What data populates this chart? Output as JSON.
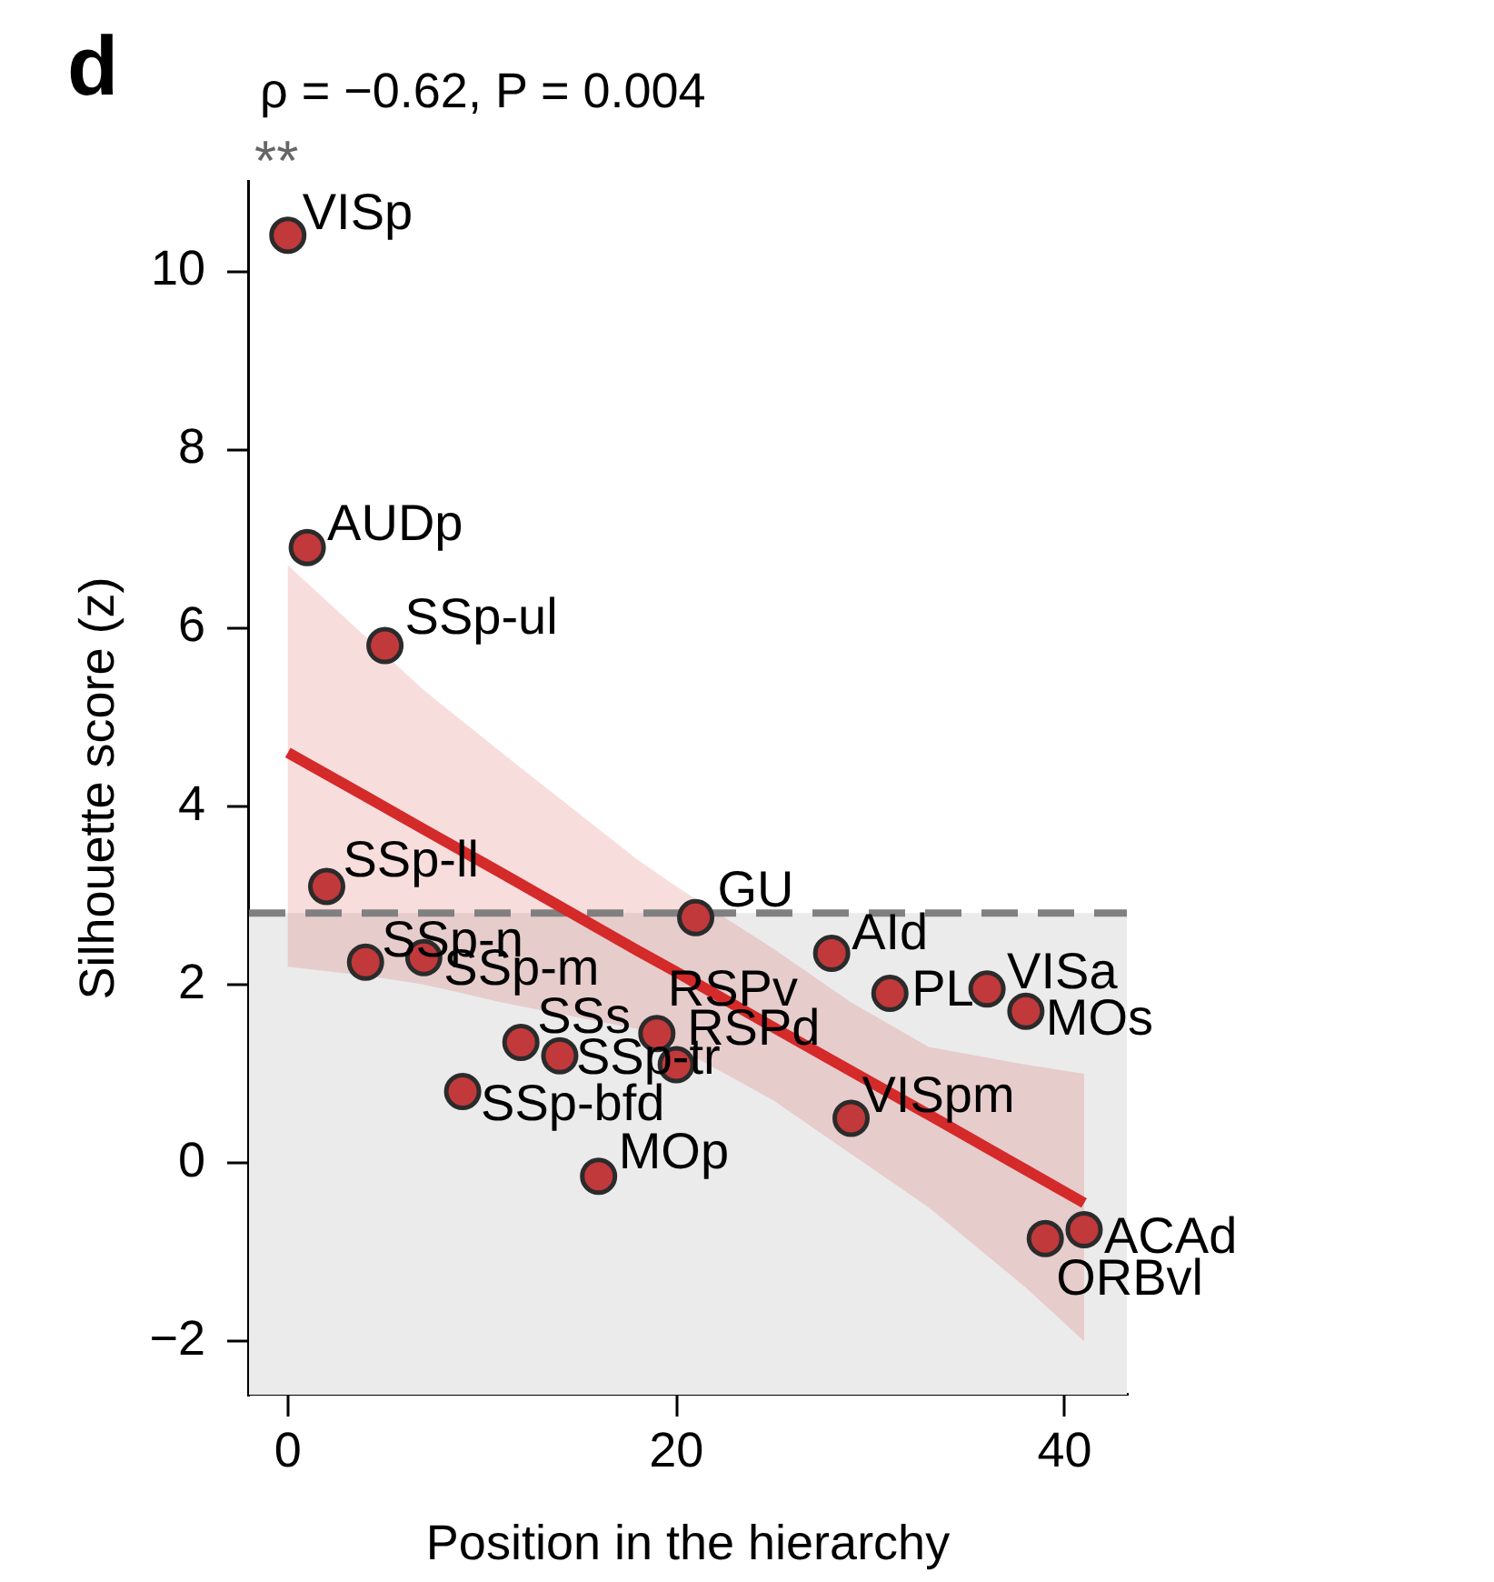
{
  "chart_data": {
    "type": "scatter",
    "title": "ρ = −0.62, P = 0.004",
    "subtitle": "**",
    "xlabel": "Position in the hierarchy",
    "ylabel": "Silhouette score (z)",
    "xlim": [
      -2,
      43.2
    ],
    "xticks": [
      0,
      20,
      40
    ],
    "ylim": [
      -2.6,
      11
    ],
    "yticks": [
      {
        "value": -2,
        "label": "−2"
      },
      0,
      2,
      4,
      6,
      8,
      10
    ],
    "grid": false,
    "legend": false,
    "marker": "circle",
    "series": [
      {
        "type": "scatter",
        "color": "#c1393b",
        "x": [
          0,
          1,
          2,
          4,
          5,
          7,
          9,
          12,
          14,
          16,
          19,
          20,
          21,
          28,
          29,
          31,
          36,
          38,
          39,
          41
        ],
        "values": [
          10.4,
          6.9,
          3.1,
          2.25,
          5.8,
          2.3,
          0.8,
          1.35,
          1.2,
          -0.15,
          1.45,
          1.1,
          2.75,
          2.35,
          0.5,
          1.9,
          1.95,
          1.7,
          -0.85,
          -0.75
        ]
      },
      {
        "type": "line",
        "color": "#d42a2a",
        "marker": "none",
        "x": [
          0,
          4,
          7,
          11,
          18,
          20,
          25,
          29,
          33,
          38,
          41
        ],
        "values": [
          4.6,
          4.11,
          3.74,
          3.25,
          2.38,
          2.14,
          1.52,
          1.03,
          0.54,
          -0.08,
          -0.45
        ],
        "upper": [
          6.7,
          5.9,
          5.3,
          4.6,
          3.4,
          3.1,
          2.4,
          1.8,
          1.3,
          1.1,
          1.0
        ],
        "lower": [
          2.2,
          2.1,
          2.0,
          1.8,
          1.5,
          1.3,
          0.7,
          0.1,
          -0.5,
          -1.4,
          -2.0
        ]
      }
    ],
    "ref_lines": [
      {
        "axis": "y",
        "value": 2.8,
        "color": "#808080",
        "line_style": "dashed"
      }
    ],
    "bands": [
      {
        "axis": "y",
        "from": -2.6,
        "to": 2.8,
        "color": "#ebebeb"
      }
    ],
    "annotations": [
      "d",
      {
        "text": "VISp",
        "x": 0,
        "y": 10.4
      },
      {
        "text": "AUDp",
        "x": 1,
        "y": 6.9
      },
      {
        "text": "SSp-ll",
        "x": 2,
        "y": 3.1
      },
      {
        "text": "SSp-n",
        "x": 4,
        "y": 2.25
      },
      {
        "text": "SSp-ul",
        "x": 5,
        "y": 5.8
      },
      {
        "text": "SSp-m",
        "x": 7,
        "y": 2.3
      },
      {
        "text": "SSp-bfd",
        "x": 9,
        "y": 0.8
      },
      {
        "text": "SSs",
        "x": 12,
        "y": 1.35
      },
      {
        "text": "SSp-tr",
        "x": 14,
        "y": 1.2
      },
      {
        "text": "MOp",
        "x": 16,
        "y": -0.15
      },
      {
        "text": "RSPv",
        "x": 19,
        "y": 1.45
      },
      {
        "text": "RSPd",
        "x": 20,
        "y": 1.1
      },
      {
        "text": "GU",
        "x": 21,
        "y": 2.75
      },
      {
        "text": "AId",
        "x": 28,
        "y": 2.35
      },
      {
        "text": "VISpm",
        "x": 29,
        "y": 0.5
      },
      {
        "text": "PL",
        "x": 31,
        "y": 1.9
      },
      {
        "text": "VISa",
        "x": 36,
        "y": 1.95
      },
      {
        "text": "MOs",
        "x": 38,
        "y": 1.7
      },
      {
        "text": "ORBvl",
        "x": 39,
        "y": -0.85
      },
      {
        "text": "ACAd",
        "x": 41,
        "y": -0.75
      }
    ]
  }
}
